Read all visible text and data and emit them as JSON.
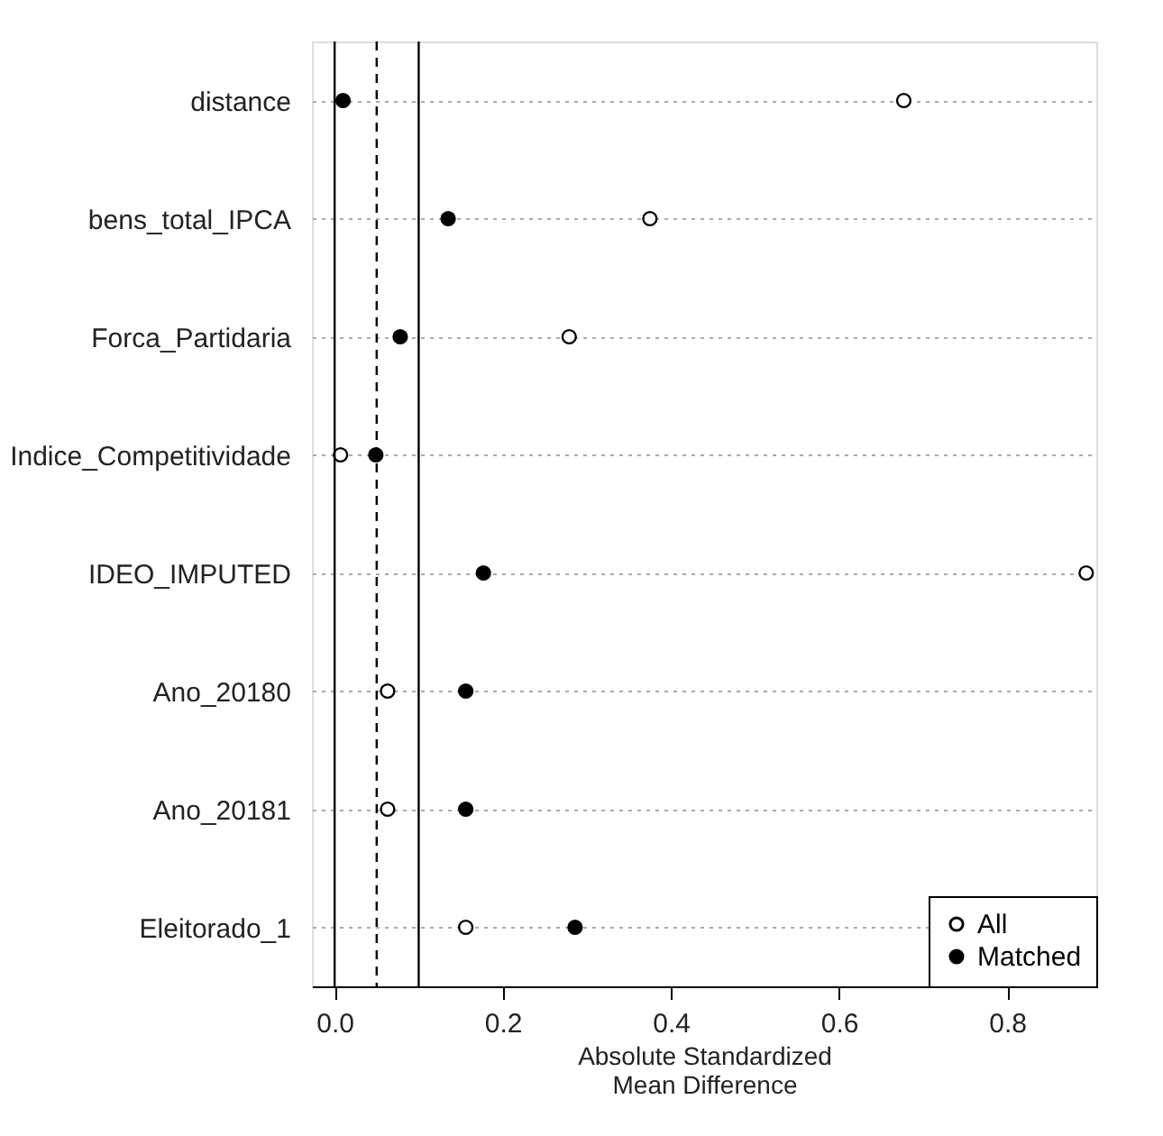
{
  "chart_data": {
    "type": "scatter",
    "orientation": "horizontal",
    "categories": [
      "distance",
      "bens_total_IPCA",
      "Forca_Partidaria",
      "Indice_Competitividade",
      "IDEO_IMPUTED",
      "Ano_20180",
      "Ano_20181",
      "Eleitorado_1"
    ],
    "series": [
      {
        "name": "All",
        "color": "#ffffff",
        "values": [
          0.677,
          0.375,
          0.279,
          0.007,
          0.894,
          0.063,
          0.063,
          0.156
        ]
      },
      {
        "name": "Matched",
        "color": "#000000",
        "values": [
          0.01,
          0.135,
          0.078,
          0.049,
          0.177,
          0.156,
          0.156,
          0.286
        ]
      }
    ],
    "xlabel": "Absolute Standardized\nMean Difference",
    "xlim": [
      -0.027,
      0.906
    ],
    "xticks": [
      {
        "value": 0,
        "label": "0.0"
      },
      0.2,
      0.4,
      0.6,
      0.8
    ],
    "ref_lines": [
      {
        "axis": "x",
        "value": 0,
        "line_style": "solid"
      },
      {
        "axis": "x",
        "value": 0.05,
        "line_style": "dashed"
      },
      {
        "axis": "x",
        "value": 0.1,
        "line_style": "solid"
      }
    ],
    "grid": "y",
    "legend": "bottom right",
    "marker": "circle"
  }
}
